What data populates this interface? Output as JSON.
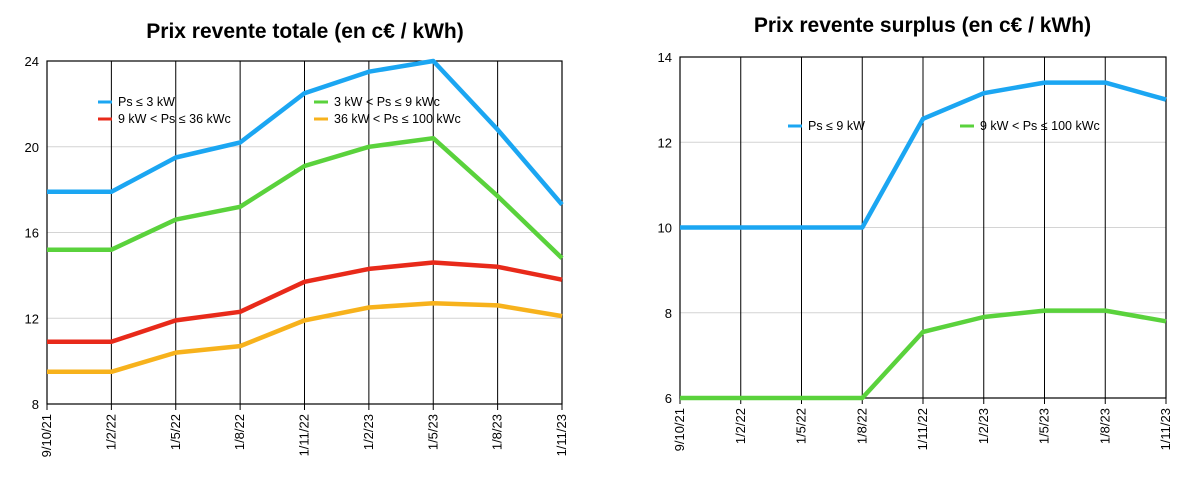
{
  "chart_data": [
    {
      "type": "line",
      "title": "Prix revente totale (en c€ / kWh)",
      "xlabel": "",
      "ylabel": "",
      "categories": [
        "9/10/21",
        "1/2/22",
        "1/5/22",
        "1/8/22",
        "1/11/22",
        "1/2/23",
        "1/5/23",
        "1/8/23",
        "1/11/23"
      ],
      "ylim": [
        8,
        24
      ],
      "yticks": [
        8,
        12,
        16,
        20,
        24
      ],
      "grid": "vertical",
      "legend_position": "top-inside",
      "series": [
        {
          "name": "Ps ≤ 3 kW",
          "color": "#1ba6f2",
          "values": [
            17.9,
            17.9,
            19.5,
            20.2,
            22.5,
            23.5,
            24.0,
            20.8,
            17.3
          ]
        },
        {
          "name": "3 kW <  Ps  ≤ 9 kWc",
          "color": "#5ad23c",
          "values": [
            15.2,
            15.2,
            16.6,
            17.2,
            19.1,
            20.0,
            20.4,
            17.7,
            14.8
          ]
        },
        {
          "name": "9 kW <  Ps  ≤ 36 kWc",
          "color": "#e82a1a",
          "values": [
            10.9,
            10.9,
            11.9,
            12.3,
            13.7,
            14.3,
            14.6,
            14.4,
            13.8
          ]
        },
        {
          "name": "36 kW <  Ps  ≤ 100 kWc",
          "color": "#f7b21c",
          "values": [
            9.5,
            9.5,
            10.4,
            10.7,
            11.9,
            12.5,
            12.7,
            12.6,
            12.1
          ]
        }
      ]
    },
    {
      "type": "line",
      "title": "Prix revente surplus (en c€ / kWh)",
      "xlabel": "",
      "ylabel": "",
      "categories": [
        "9/10/21",
        "1/2/22",
        "1/5/22",
        "1/8/22",
        "1/11/22",
        "1/2/23",
        "1/5/23",
        "1/8/23",
        "1/11/23"
      ],
      "ylim": [
        6,
        14
      ],
      "yticks": [
        6,
        8,
        10,
        12,
        14
      ],
      "grid": "vertical",
      "legend_position": "top-inside",
      "series": [
        {
          "name": "Ps ≤ 9 kW",
          "color": "#1ba6f2",
          "values": [
            10.0,
            10.0,
            10.0,
            10.0,
            12.55,
            13.15,
            13.4,
            13.4,
            13.0
          ]
        },
        {
          "name": "9 kW <  Ps  ≤ 100 kWc",
          "color": "#5ad23c",
          "values": [
            6.0,
            6.0,
            6.0,
            6.0,
            7.55,
            7.9,
            8.05,
            8.05,
            7.8
          ]
        }
      ]
    }
  ]
}
